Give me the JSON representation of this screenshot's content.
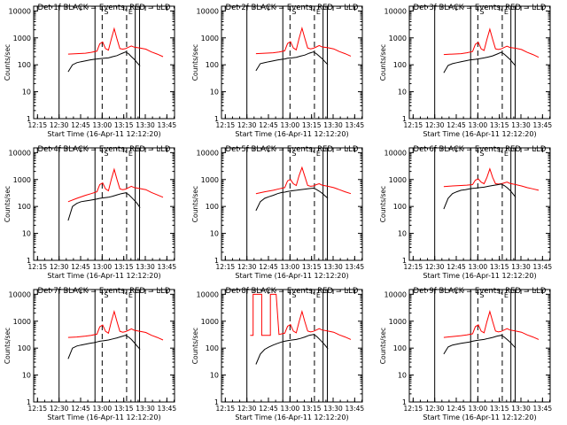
{
  "chart_data": {
    "type": "line",
    "ylabel": "Counts/sec",
    "xlabel": "Start Time (16-Apr-11 12:12:20)",
    "x_ticks": [
      "12:15",
      "12:30",
      "12:45",
      "13:00",
      "13:15",
      "13:30",
      "13:45"
    ],
    "x_tick_minutes": [
      2.67,
      17.67,
      32.67,
      47.67,
      62.67,
      77.67,
      92.67
    ],
    "xlim_minutes": [
      0,
      98
    ],
    "y_ticks": [
      "1",
      "10",
      "100",
      "1000",
      "10000"
    ],
    "ylim": [
      1,
      15000
    ],
    "y_scale": "log",
    "colors": {
      "events": "#000000",
      "lld": "#ff0000"
    },
    "panels": [
      {
        "title": "Det 1f BLACK = Events, RED = LLD",
        "markers": [
          "S",
          "E"
        ],
        "events": {
          "x": [
            24,
            27,
            30,
            33,
            36,
            39,
            42,
            44,
            46,
            49,
            52,
            55,
            58,
            61,
            64,
            66,
            68,
            70,
            72,
            74
          ],
          "y": [
            55,
            100,
            120,
            130,
            140,
            150,
            160,
            165,
            170,
            175,
            180,
            200,
            220,
            260,
            300,
            260,
            200,
            160,
            120,
            90
          ]
        },
        "lld": {
          "x": [
            24,
            30,
            36,
            40,
            44,
            46,
            48,
            50,
            52,
            54,
            56,
            58,
            60,
            62,
            64,
            66,
            68,
            70,
            74,
            78,
            82,
            86,
            90
          ],
          "y": [
            250,
            260,
            270,
            290,
            320,
            600,
            700,
            400,
            350,
            900,
            2200,
            900,
            400,
            380,
            400,
            450,
            500,
            450,
            420,
            380,
            300,
            250,
            200
          ]
        }
      },
      {
        "title": "Det 2f BLACK = Events, RED = LLD",
        "markers": [
          "S",
          "E"
        ],
        "events": {
          "x": [
            24,
            27,
            30,
            33,
            36,
            39,
            42,
            44,
            46,
            49,
            52,
            55,
            58,
            61,
            64,
            66,
            68,
            70,
            72,
            74
          ],
          "y": [
            60,
            110,
            120,
            130,
            140,
            150,
            160,
            165,
            175,
            180,
            190,
            210,
            230,
            270,
            300,
            260,
            210,
            170,
            130,
            100
          ]
        },
        "lld": {
          "x": [
            24,
            30,
            36,
            40,
            44,
            46,
            48,
            50,
            52,
            54,
            56,
            58,
            60,
            62,
            64,
            66,
            68,
            70,
            74,
            78,
            82,
            86,
            90
          ],
          "y": [
            260,
            270,
            280,
            300,
            330,
            620,
            720,
            420,
            360,
            950,
            2300,
            950,
            420,
            390,
            410,
            460,
            520,
            460,
            430,
            390,
            310,
            260,
            210
          ]
        }
      },
      {
        "title": "Det 3f BLACK = Events, RED = LLD",
        "markers": [
          "S",
          "E"
        ],
        "events": {
          "x": [
            24,
            27,
            30,
            33,
            36,
            39,
            42,
            44,
            46,
            49,
            52,
            55,
            58,
            61,
            64,
            66,
            68,
            70,
            72,
            74
          ],
          "y": [
            50,
            95,
            110,
            120,
            130,
            140,
            150,
            155,
            160,
            170,
            180,
            195,
            215,
            250,
            290,
            250,
            200,
            160,
            120,
            90
          ]
        },
        "lld": {
          "x": [
            24,
            30,
            36,
            40,
            44,
            46,
            48,
            50,
            52,
            54,
            56,
            58,
            60,
            62,
            64,
            66,
            68,
            70,
            74,
            78,
            82,
            86,
            90
          ],
          "y": [
            240,
            250,
            260,
            280,
            310,
            580,
            680,
            390,
            340,
            880,
            2100,
            880,
            390,
            370,
            390,
            440,
            490,
            440,
            410,
            370,
            290,
            240,
            190
          ]
        }
      },
      {
        "title": "Det 4f BLACK = Events, RED = LLD",
        "markers": [
          "S",
          "E"
        ],
        "events": {
          "x": [
            24,
            27,
            30,
            33,
            36,
            39,
            42,
            44,
            46,
            49,
            52,
            55,
            58,
            61,
            64,
            66,
            68,
            70,
            72,
            74
          ],
          "y": [
            30,
            100,
            130,
            150,
            160,
            170,
            180,
            190,
            200,
            210,
            220,
            240,
            270,
            300,
            320,
            280,
            220,
            170,
            130,
            90
          ]
        },
        "lld": {
          "x": [
            24,
            30,
            36,
            40,
            44,
            46,
            48,
            50,
            52,
            54,
            56,
            58,
            60,
            62,
            64,
            66,
            68,
            70,
            74,
            78,
            82,
            86,
            90
          ],
          "y": [
            150,
            200,
            260,
            300,
            350,
            650,
            750,
            450,
            380,
            1000,
            2400,
            1000,
            450,
            420,
            440,
            500,
            560,
            500,
            460,
            420,
            330,
            270,
            220
          ]
        }
      },
      {
        "title": "Det 5f BLACK = Events, RED = LLD",
        "markers": [
          "S",
          "E"
        ],
        "events": {
          "x": [
            24,
            27,
            30,
            33,
            36,
            39,
            42,
            44,
            46,
            49,
            52,
            55,
            58,
            61,
            64,
            66,
            68,
            70,
            72,
            74
          ],
          "y": [
            70,
            150,
            200,
            230,
            260,
            300,
            330,
            340,
            360,
            380,
            400,
            420,
            440,
            460,
            480,
            430,
            370,
            310,
            250,
            200
          ]
        },
        "lld": {
          "x": [
            24,
            30,
            36,
            40,
            44,
            46,
            48,
            50,
            52,
            54,
            56,
            58,
            60,
            62,
            64,
            66,
            68,
            70,
            74,
            78,
            82,
            86,
            90
          ],
          "y": [
            300,
            350,
            400,
            450,
            500,
            900,
            1000,
            700,
            600,
            1400,
            2800,
            1300,
            600,
            560,
            580,
            650,
            700,
            620,
            560,
            500,
            420,
            350,
            300
          ]
        }
      },
      {
        "title": "Det 6f BLACK = Events, RED = LLD",
        "markers": [
          "S",
          "E"
        ],
        "events": {
          "x": [
            24,
            27,
            30,
            33,
            36,
            39,
            42,
            44,
            46,
            49,
            52,
            55,
            58,
            61,
            64,
            66,
            68,
            70,
            72,
            74
          ],
          "y": [
            80,
            200,
            300,
            350,
            400,
            420,
            450,
            470,
            480,
            500,
            520,
            560,
            600,
            640,
            680,
            600,
            500,
            400,
            300,
            220
          ]
        },
        "lld": {
          "x": [
            24,
            30,
            36,
            40,
            44,
            46,
            48,
            50,
            52,
            54,
            56,
            58,
            60,
            62,
            64,
            66,
            68,
            70,
            74,
            78,
            82,
            86,
            90
          ],
          "y": [
            550,
            580,
            600,
            620,
            650,
            950,
            1050,
            800,
            700,
            1200,
            2500,
            1200,
            700,
            680,
            700,
            750,
            800,
            720,
            650,
            580,
            500,
            450,
            400
          ]
        }
      },
      {
        "title": "Det 7f BLACK = Events, RED = LLD",
        "markers": [
          "S",
          "E"
        ],
        "events": {
          "x": [
            24,
            27,
            30,
            33,
            36,
            39,
            42,
            44,
            46,
            49,
            52,
            55,
            58,
            61,
            64,
            66,
            68,
            70,
            72,
            74
          ],
          "y": [
            40,
            100,
            120,
            130,
            140,
            150,
            160,
            170,
            180,
            190,
            200,
            220,
            240,
            270,
            300,
            260,
            210,
            160,
            120,
            90
          ]
        },
        "lld": {
          "x": [
            24,
            30,
            36,
            40,
            44,
            46,
            48,
            50,
            52,
            54,
            56,
            58,
            60,
            62,
            64,
            66,
            68,
            70,
            74,
            78,
            82,
            86,
            90
          ],
          "y": [
            250,
            260,
            280,
            300,
            330,
            620,
            720,
            420,
            360,
            950,
            2300,
            950,
            420,
            390,
            410,
            460,
            520,
            460,
            420,
            380,
            300,
            250,
            200
          ]
        }
      },
      {
        "title": "Det 8f BLACK = Events, RED = LLD",
        "markers": [
          "S",
          "E"
        ],
        "events": {
          "x": [
            24,
            27,
            30,
            33,
            36,
            39,
            42,
            44,
            46,
            49,
            52,
            55,
            58,
            61,
            64,
            66,
            68,
            70,
            72,
            74
          ],
          "y": [
            25,
            60,
            90,
            110,
            130,
            150,
            170,
            180,
            190,
            200,
            210,
            230,
            260,
            300,
            320,
            280,
            220,
            170,
            130,
            95
          ]
        },
        "lld": {
          "x": [
            20,
            22,
            22,
            24,
            26,
            28,
            28,
            30,
            32,
            34,
            34,
            36,
            38,
            40,
            42,
            44,
            46,
            48,
            50,
            52,
            54,
            56,
            58,
            60,
            62,
            64,
            66,
            68,
            70,
            74,
            78,
            82,
            86,
            90
          ],
          "y": [
            300,
            300,
            10000,
            10000,
            10000,
            10000,
            300,
            300,
            300,
            300,
            10000,
            10000,
            10000,
            320,
            340,
            360,
            650,
            750,
            430,
            370,
            950,
            2300,
            950,
            430,
            400,
            420,
            470,
            530,
            470,
            430,
            390,
            310,
            260,
            210
          ]
        }
      },
      {
        "title": "Det 9f BLACK = Events, RED = LLD",
        "markers": [
          "S",
          "E"
        ],
        "events": {
          "x": [
            24,
            27,
            30,
            33,
            36,
            39,
            42,
            44,
            46,
            49,
            52,
            55,
            58,
            61,
            64,
            66,
            68,
            70,
            72,
            74
          ],
          "y": [
            60,
            110,
            130,
            140,
            150,
            160,
            170,
            180,
            190,
            200,
            210,
            230,
            250,
            280,
            300,
            260,
            210,
            170,
            130,
            100
          ]
        },
        "lld": {
          "x": [
            24,
            30,
            36,
            40,
            44,
            46,
            48,
            50,
            52,
            54,
            56,
            58,
            60,
            62,
            64,
            66,
            68,
            70,
            74,
            78,
            82,
            86,
            90
          ],
          "y": [
            250,
            270,
            290,
            310,
            340,
            630,
            730,
            430,
            370,
            960,
            2300,
            960,
            430,
            400,
            420,
            470,
            530,
            470,
            430,
            390,
            310,
            260,
            210
          ]
        }
      }
    ],
    "vlines_minutes": {
      "solid": [
        17.67,
        42.67,
        70.67,
        73.67
      ],
      "dashed": [
        47.67,
        64.67
      ]
    }
  }
}
